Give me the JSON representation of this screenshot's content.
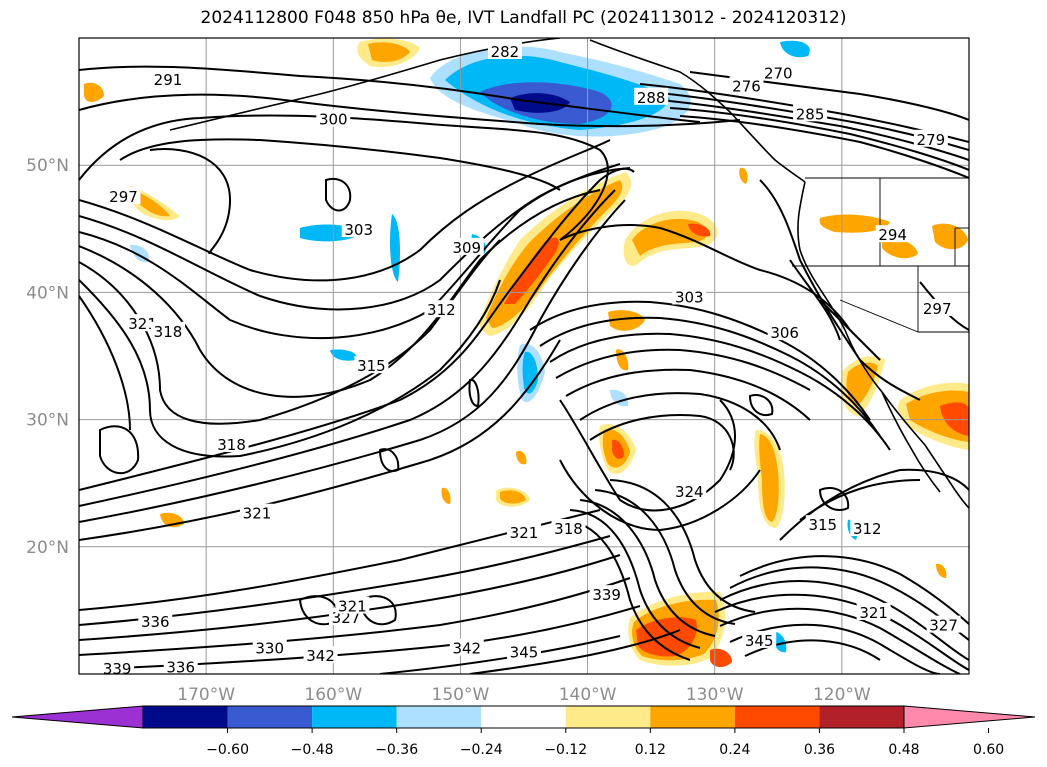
{
  "title": "2024112800 F048 850 hPa θe, IVT Landfall PC (2024113012 - 2024120312)",
  "map": {
    "lon_range": [
      -180,
      -110
    ],
    "lat_range": [
      10,
      60
    ],
    "lon_ticks": [
      {
        "lon": -170,
        "label": "170°W"
      },
      {
        "lon": -160,
        "label": "160°W"
      },
      {
        "lon": -150,
        "label": "150°W"
      },
      {
        "lon": -140,
        "label": "140°W"
      },
      {
        "lon": -130,
        "label": "130°W"
      },
      {
        "lon": -120,
        "label": "120°W"
      }
    ],
    "lat_ticks": [
      {
        "lat": 50,
        "label": "50°N"
      },
      {
        "lat": 40,
        "label": "40°N"
      },
      {
        "lat": 30,
        "label": "30°N"
      },
      {
        "lat": 20,
        "label": "20°N"
      }
    ],
    "contour_labels": [
      {
        "text": "291",
        "lon": -173,
        "lat": 56.7
      },
      {
        "text": "282",
        "lon": -146.5,
        "lat": 58.9
      },
      {
        "text": "270",
        "lon": -125,
        "lat": 57.2
      },
      {
        "text": "276",
        "lon": -127.5,
        "lat": 56.2
      },
      {
        "text": "288",
        "lon": -135,
        "lat": 55.3
      },
      {
        "text": "285",
        "lon": -122.5,
        "lat": 54.0
      },
      {
        "text": "279",
        "lon": -113,
        "lat": 52.0
      },
      {
        "text": "300",
        "lon": -160,
        "lat": 53.6
      },
      {
        "text": "297",
        "lon": -176.5,
        "lat": 47.5
      },
      {
        "text": "303",
        "lon": -158,
        "lat": 44.9
      },
      {
        "text": "294",
        "lon": -116,
        "lat": 44.5
      },
      {
        "text": "309",
        "lon": -149.5,
        "lat": 43.5
      },
      {
        "text": "297",
        "lon": -112.5,
        "lat": 38.7
      },
      {
        "text": "303",
        "lon": -132,
        "lat": 39.6
      },
      {
        "text": "306",
        "lon": -124.5,
        "lat": 36.8
      },
      {
        "text": "312",
        "lon": -151.5,
        "lat": 38.6
      },
      {
        "text": "321",
        "lon": -175,
        "lat": 37.5
      },
      {
        "text": "318",
        "lon": -173,
        "lat": 36.9
      },
      {
        "text": "315",
        "lon": -157,
        "lat": 34.2
      },
      {
        "text": "318",
        "lon": -168,
        "lat": 28.0
      },
      {
        "text": "324",
        "lon": -132,
        "lat": 24.3
      },
      {
        "text": "321",
        "lon": -166,
        "lat": 22.6
      },
      {
        "text": "312",
        "lon": -118,
        "lat": 21.4
      },
      {
        "text": "315",
        "lon": -121.5,
        "lat": 21.7
      },
      {
        "text": "321",
        "lon": -145,
        "lat": 21.1
      },
      {
        "text": "318",
        "lon": -141.5,
        "lat": 21.4
      },
      {
        "text": "339",
        "lon": -138.5,
        "lat": 16.2
      },
      {
        "text": "321",
        "lon": -117.5,
        "lat": 14.8
      },
      {
        "text": "327",
        "lon": -112,
        "lat": 13.8
      },
      {
        "text": "336",
        "lon": -174,
        "lat": 14.1
      },
      {
        "text": "327",
        "lon": -159,
        "lat": 14.4
      },
      {
        "text": "321",
        "lon": -158.5,
        "lat": 15.3
      },
      {
        "text": "330",
        "lon": -165,
        "lat": 12.0
      },
      {
        "text": "342",
        "lon": -161,
        "lat": 11.4
      },
      {
        "text": "342",
        "lon": -149.5,
        "lat": 12.0
      },
      {
        "text": "345",
        "lon": -145,
        "lat": 11.7
      },
      {
        "text": "345",
        "lon": -126.5,
        "lat": 12.6
      },
      {
        "text": "339",
        "lon": -177,
        "lat": 10.4
      },
      {
        "text": "336",
        "lon": -172,
        "lat": 10.5
      }
    ]
  },
  "colorbar": {
    "ticks": [
      "−0.60",
      "−0.48",
      "−0.36",
      "−0.24",
      "−0.12",
      "0.12",
      "0.24",
      "0.36",
      "0.48",
      "0.60"
    ],
    "colors": [
      "#9b30d3",
      "#000b8c",
      "#3a5ad1",
      "#00b8f5",
      "#addfff",
      "#ffffff",
      "#ffea8a",
      "#ffa500",
      "#ff4a00",
      "#b2202a",
      "#ff89ad"
    ]
  }
}
